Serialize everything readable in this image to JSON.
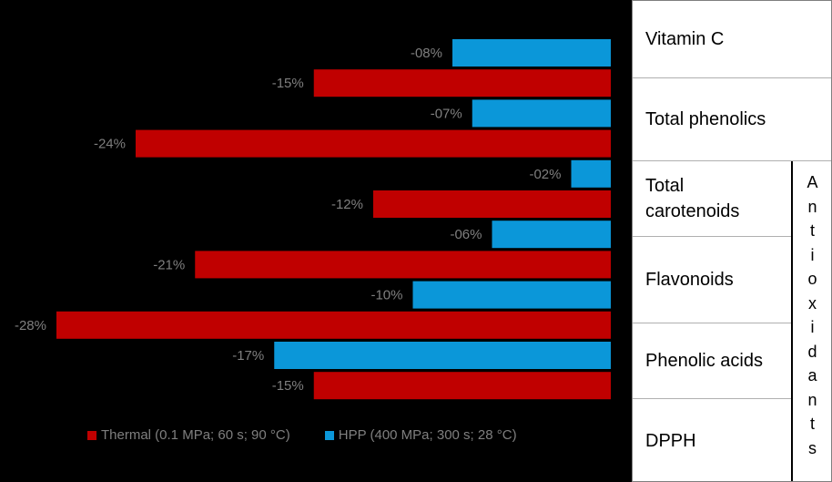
{
  "chart_data": {
    "type": "bar",
    "orientation": "horizontal",
    "bars": [
      {
        "series": "HPP",
        "value": -8,
        "label": "-08%"
      },
      {
        "series": "Thermal",
        "value": -15,
        "label": "-15%"
      },
      {
        "series": "HPP",
        "value": -7,
        "label": "-07%"
      },
      {
        "series": "Thermal",
        "value": -24,
        "label": "-24%"
      },
      {
        "series": "HPP",
        "value": -2,
        "label": "-02%"
      },
      {
        "series": "Thermal",
        "value": -12,
        "label": "-12%"
      },
      {
        "series": "HPP",
        "value": -6,
        "label": "-06%"
      },
      {
        "series": "Thermal",
        "value": -21,
        "label": "-21%"
      },
      {
        "series": "HPP",
        "value": -10,
        "label": "-10%"
      },
      {
        "series": "Thermal",
        "value": -28,
        "label": "-28%"
      },
      {
        "series": "HPP",
        "value": -17,
        "label": "-17%"
      },
      {
        "series": "Thermal",
        "value": -15,
        "label": "-15%"
      }
    ],
    "xlim": [
      -28,
      0
    ],
    "legend": {
      "placement": "bottom",
      "items": [
        {
          "name": "Thermal",
          "label": "Thermal (0.1 MPa; 60 s; 90 °C)",
          "color": "#c00000"
        },
        {
          "name": "HPP",
          "label": "HPP (400 MPa; 300 s; 28 °C)",
          "color": "#0b97d9"
        }
      ]
    },
    "grid": false
  },
  "categories": [
    "Vitamin C",
    "Total phenolics",
    "Total carotenoids",
    "Flavonoids",
    "Phenolic acids",
    "DPPH"
  ],
  "group_label": "Antioxidants",
  "colors": {
    "background": "#000000",
    "label": "#7f7f7f",
    "thermal": "#c00000",
    "hpp": "#0b97d9"
  }
}
